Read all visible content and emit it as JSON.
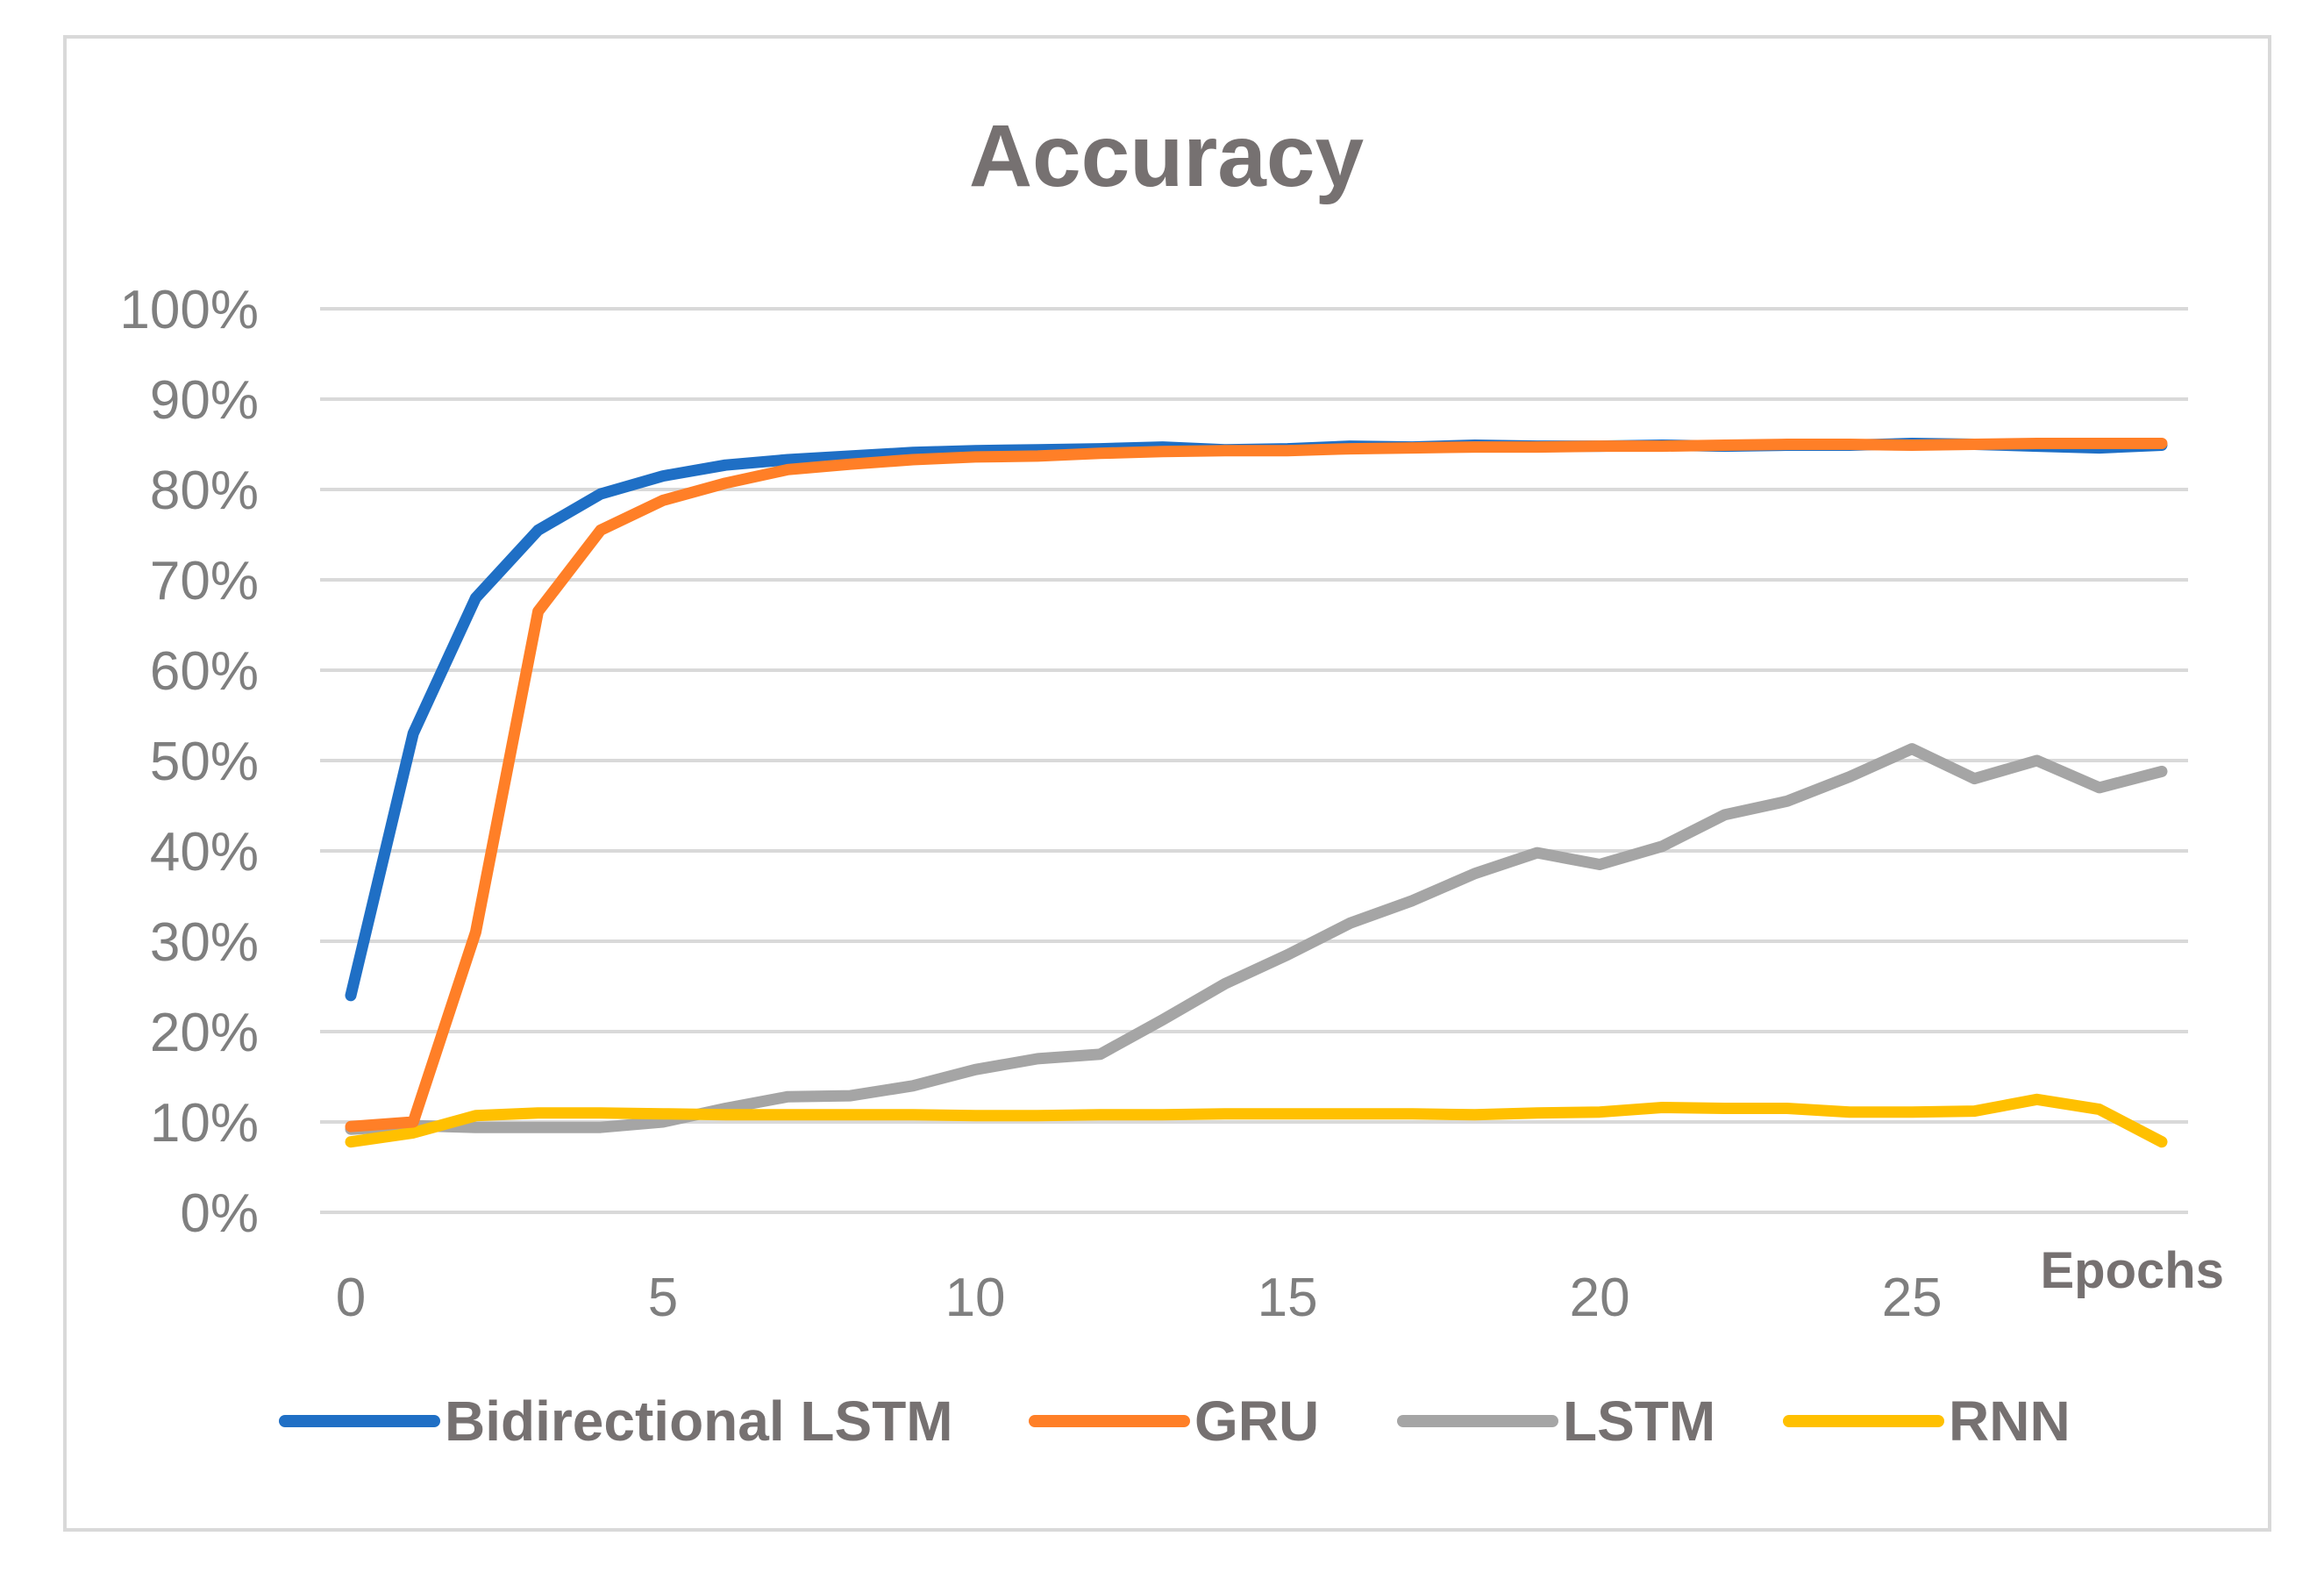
{
  "chart_data": {
    "type": "line",
    "title": "Accuracy",
    "xlabel": "Epochs",
    "ylabel": "",
    "xlim": [
      0,
      29
    ],
    "ylim": [
      0,
      100
    ],
    "x_ticks": [
      "0",
      "5",
      "10",
      "15",
      "20",
      "25"
    ],
    "y_ticks": [
      "0%",
      "10%",
      "20%",
      "30%",
      "40%",
      "50%",
      "60%",
      "70%",
      "80%",
      "90%",
      "100%"
    ],
    "grid": "horizontal",
    "legend_position": "bottom",
    "x": [
      0,
      1,
      2,
      3,
      4,
      5,
      6,
      7,
      8,
      9,
      10,
      11,
      12,
      13,
      14,
      15,
      16,
      17,
      18,
      19,
      20,
      21,
      22,
      23,
      24,
      25,
      26,
      27,
      28,
      29
    ],
    "series": [
      {
        "name": "Bidirectional LSTM",
        "color": "#1f6fc5",
        "values": [
          24,
          53,
          68,
          75.5,
          79.5,
          81.5,
          82.7,
          83.3,
          83.7,
          84.1,
          84.3,
          84.4,
          84.5,
          84.7,
          84.4,
          84.5,
          84.8,
          84.7,
          84.9,
          84.8,
          84.8,
          84.9,
          84.8,
          84.9,
          84.9,
          85.1,
          85,
          84.8,
          84.6,
          84.9
        ]
      },
      {
        "name": "GRU",
        "color": "#ff7f27",
        "values": [
          9.5,
          10,
          31,
          66.5,
          75.5,
          78.8,
          80.7,
          82.2,
          82.8,
          83.3,
          83.6,
          83.7,
          84,
          84.2,
          84.3,
          84.3,
          84.5,
          84.6,
          84.7,
          84.7,
          84.8,
          84.8,
          84.9,
          85,
          85,
          84.9,
          85,
          85.1,
          85.1,
          85.1
        ]
      },
      {
        "name": "LSTM",
        "color": "#a5a5a5",
        "values": [
          9.2,
          9.6,
          9.4,
          9.4,
          9.4,
          10,
          11.5,
          12.8,
          12.9,
          14,
          15.8,
          17,
          17.5,
          21.3,
          25.3,
          28.5,
          32,
          34.5,
          37.5,
          39.8,
          38.5,
          40.5,
          44,
          45.5,
          48.2,
          51.3,
          48,
          50,
          47,
          48.8
        ]
      },
      {
        "name": "RNN",
        "color": "#ffc000",
        "values": [
          7.8,
          8.8,
          10.7,
          11,
          11,
          10.9,
          10.8,
          10.8,
          10.8,
          10.8,
          10.7,
          10.7,
          10.8,
          10.8,
          10.9,
          10.9,
          10.9,
          10.9,
          10.8,
          11,
          11.1,
          11.6,
          11.5,
          11.5,
          11.1,
          11.1,
          11.2,
          12.5,
          11.4,
          7.8
        ]
      }
    ]
  }
}
